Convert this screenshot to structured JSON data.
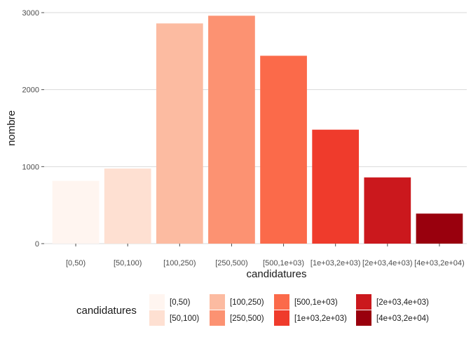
{
  "chart_data": {
    "type": "bar",
    "categories": [
      "[0,50)",
      "[50,100)",
      "[100,250)",
      "[250,500)",
      "[500,1e+03)",
      "[1e+03,2e+03)",
      "[2e+03,4e+03)",
      "[4e+03,2e+04)"
    ],
    "values": [
      815,
      975,
      2860,
      2960,
      2440,
      1480,
      860,
      390
    ],
    "colors": [
      "#FFF5F0",
      "#FEE0D2",
      "#FCBBA1",
      "#FC9272",
      "#FB6A4A",
      "#EF3B2C",
      "#CB181D",
      "#99000D"
    ],
    "xlabel": "candidatures",
    "ylabel": "nombre",
    "ylim": [
      0,
      3000
    ],
    "yticks": [
      0,
      1000,
      2000,
      3000
    ],
    "grid": true,
    "legend": {
      "title": "candidatures",
      "position": "bottom",
      "entries": [
        "[0,50)",
        "[50,100)",
        "[100,250)",
        "[250,500)",
        "[500,1e+03)",
        "[1e+03,2e+03)",
        "[2e+03,4e+03)",
        "[4e+03,2e+04)"
      ]
    }
  }
}
